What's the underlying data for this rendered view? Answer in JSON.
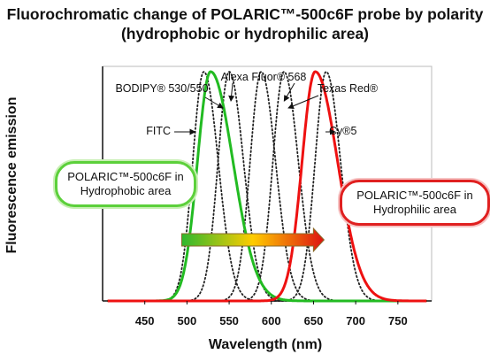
{
  "title_line1": "Fluorochromatic change of POLARIC™-500c6F probe by polarity",
  "title_line2": "(hydrophobic or hydrophilic area)",
  "callouts": {
    "hydrophobic": "POLARIC™-500c6F in Hydrophobic area",
    "hydrophilic": "POLARIC™-500c6F in Hydrophilic area"
  },
  "colors": {
    "green": "#22bb22",
    "red": "#ee1111",
    "dotted": "#222222"
  },
  "chart_data": {
    "type": "line",
    "xlabel": "Wavelength (nm)",
    "ylabel": "Fluorescence emission",
    "xlim": [
      400,
      790
    ],
    "xticks": [
      450,
      500,
      550,
      600,
      650,
      700,
      750
    ],
    "series": [
      {
        "name": "POLARIC™-500c6F in Hydrophobic area",
        "peak_nm": 528,
        "style": "solid",
        "color": "green"
      },
      {
        "name": "POLARIC™-500c6F in Hydrophilic area",
        "peak_nm": 652,
        "style": "solid",
        "color": "red"
      },
      {
        "name": "FITC",
        "peak_nm": 520,
        "style": "dotted"
      },
      {
        "name": "BODIPY® 530/550",
        "peak_nm": 550,
        "style": "dotted"
      },
      {
        "name": "Alexa Fluor® 568",
        "peak_nm": 588,
        "style": "dotted"
      },
      {
        "name": "Texas Red®",
        "peak_nm": 615,
        "style": "dotted"
      },
      {
        "name": "Cy®5",
        "peak_nm": 665,
        "style": "dotted"
      }
    ],
    "annotations": [
      {
        "text": "FITC",
        "target": "FITC"
      },
      {
        "text": "BODIPY® 530/550",
        "target": "BODIPY® 530/550"
      },
      {
        "text": "Alexa Fluor® 568",
        "target": "Alexa Fluor® 568"
      },
      {
        "text": "Texas Red®",
        "target": "Texas Red®"
      },
      {
        "text": "Cy®5",
        "target": "Cy®5"
      }
    ],
    "arrow": {
      "from_nm": 520,
      "to_nm": 652,
      "gradient": [
        "#2eb82e",
        "#ffcc00",
        "#dd1111"
      ]
    },
    "grid": false,
    "legend": "none"
  }
}
